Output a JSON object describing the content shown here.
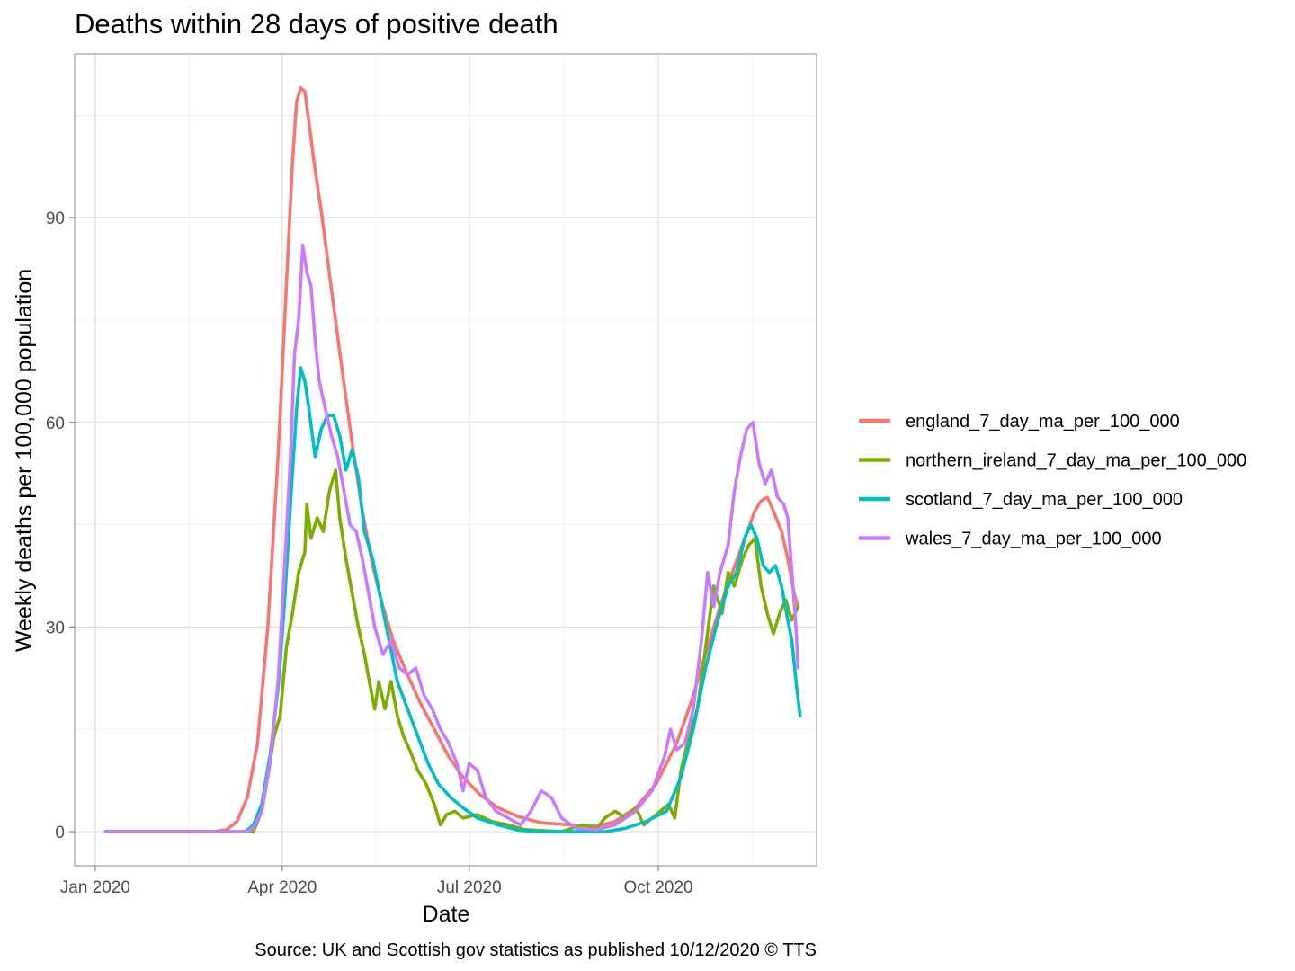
{
  "chart_data": {
    "type": "line",
    "title": "Deaths within 28 days of positive death",
    "xlabel": "Date",
    "ylabel": "Weekly deaths per 100,000 population",
    "caption": "Source: UK and Scottish gov statistics as published 10/12/2020  © TTS",
    "x_ticks": [
      "Jan 2020",
      "Apr 2020",
      "Jul 2020",
      "Oct 2020"
    ],
    "y_ticks": [
      0,
      30,
      60,
      90
    ],
    "xlim": [
      "2019-12-22",
      "2020-12-17"
    ],
    "ylim": [
      -5,
      114
    ],
    "grid": true,
    "legend_position": "right",
    "series": [
      {
        "name": "england_7_day_ma_per_100_000",
        "color": "#F8766D",
        "points": [
          [
            "2020-01-06",
            0
          ],
          [
            "2020-02-28",
            0
          ],
          [
            "2020-03-05",
            0.3
          ],
          [
            "2020-03-10",
            1.5
          ],
          [
            "2020-03-15",
            5
          ],
          [
            "2020-03-20",
            13
          ],
          [
            "2020-03-25",
            30
          ],
          [
            "2020-03-30",
            55
          ],
          [
            "2020-04-03",
            80
          ],
          [
            "2020-04-06",
            98
          ],
          [
            "2020-04-08",
            107
          ],
          [
            "2020-04-10",
            109
          ],
          [
            "2020-04-12",
            108.5
          ],
          [
            "2020-04-14",
            104
          ],
          [
            "2020-04-17",
            97
          ],
          [
            "2020-04-20",
            91
          ],
          [
            "2020-04-23",
            84
          ],
          [
            "2020-04-26",
            77
          ],
          [
            "2020-04-30",
            68
          ],
          [
            "2020-05-05",
            57
          ],
          [
            "2020-05-10",
            47
          ],
          [
            "2020-05-15",
            39
          ],
          [
            "2020-05-20",
            33
          ],
          [
            "2020-05-25",
            28
          ],
          [
            "2020-06-01",
            23
          ],
          [
            "2020-06-07",
            19
          ],
          [
            "2020-06-14",
            15
          ],
          [
            "2020-06-21",
            11
          ],
          [
            "2020-06-28",
            8
          ],
          [
            "2020-07-06",
            5.5
          ],
          [
            "2020-07-15",
            3.5
          ],
          [
            "2020-07-25",
            2.2
          ],
          [
            "2020-08-05",
            1.3
          ],
          [
            "2020-08-20",
            1
          ],
          [
            "2020-09-01",
            0.8
          ],
          [
            "2020-09-10",
            1.5
          ],
          [
            "2020-09-20",
            3.5
          ],
          [
            "2020-09-30",
            7
          ],
          [
            "2020-10-10",
            13
          ],
          [
            "2020-10-17",
            19
          ],
          [
            "2020-10-24",
            26
          ],
          [
            "2020-10-31",
            33
          ],
          [
            "2020-11-06",
            38
          ],
          [
            "2020-11-12",
            43
          ],
          [
            "2020-11-17",
            47
          ],
          [
            "2020-11-20",
            48.5
          ],
          [
            "2020-11-23",
            49
          ],
          [
            "2020-11-26",
            47
          ],
          [
            "2020-11-30",
            44
          ],
          [
            "2020-12-03",
            40
          ],
          [
            "2020-12-06",
            35
          ],
          [
            "2020-12-08",
            33
          ]
        ]
      },
      {
        "name": "northern_ireland_7_day_ma_per_100_000",
        "color": "#7CAE00",
        "points": [
          [
            "2020-01-06",
            0
          ],
          [
            "2020-03-18",
            0
          ],
          [
            "2020-03-22",
            3
          ],
          [
            "2020-03-25",
            8
          ],
          [
            "2020-03-28",
            14
          ],
          [
            "2020-03-31",
            17
          ],
          [
            "2020-04-03",
            27
          ],
          [
            "2020-04-06",
            32
          ],
          [
            "2020-04-09",
            38
          ],
          [
            "2020-04-12",
            41
          ],
          [
            "2020-04-13",
            48
          ],
          [
            "2020-04-15",
            43
          ],
          [
            "2020-04-18",
            46
          ],
          [
            "2020-04-21",
            44
          ],
          [
            "2020-04-24",
            50
          ],
          [
            "2020-04-27",
            53
          ],
          [
            "2020-04-29",
            46
          ],
          [
            "2020-05-02",
            40
          ],
          [
            "2020-05-05",
            35
          ],
          [
            "2020-05-08",
            30
          ],
          [
            "2020-05-11",
            26
          ],
          [
            "2020-05-14",
            21
          ],
          [
            "2020-05-16",
            18
          ],
          [
            "2020-05-18",
            22
          ],
          [
            "2020-05-21",
            18
          ],
          [
            "2020-05-24",
            22
          ],
          [
            "2020-05-27",
            17
          ],
          [
            "2020-05-30",
            14
          ],
          [
            "2020-06-02",
            12
          ],
          [
            "2020-06-06",
            9
          ],
          [
            "2020-06-10",
            7
          ],
          [
            "2020-06-14",
            4
          ],
          [
            "2020-06-17",
            1
          ],
          [
            "2020-06-20",
            2.5
          ],
          [
            "2020-06-24",
            3
          ],
          [
            "2020-06-28",
            2
          ],
          [
            "2020-07-05",
            2.5
          ],
          [
            "2020-07-12",
            1.5
          ],
          [
            "2020-07-20",
            1
          ],
          [
            "2020-07-28",
            0.3
          ],
          [
            "2020-08-15",
            0
          ],
          [
            "2020-08-25",
            1
          ],
          [
            "2020-09-01",
            0.5
          ],
          [
            "2020-09-05",
            2
          ],
          [
            "2020-09-10",
            3
          ],
          [
            "2020-09-15",
            2
          ],
          [
            "2020-09-20",
            3.5
          ],
          [
            "2020-09-24",
            1
          ],
          [
            "2020-09-28",
            2
          ],
          [
            "2020-10-02",
            3
          ],
          [
            "2020-10-06",
            4
          ],
          [
            "2020-10-09",
            2
          ],
          [
            "2020-10-12",
            9
          ],
          [
            "2020-10-16",
            14
          ],
          [
            "2020-10-20",
            18
          ],
          [
            "2020-10-24",
            27
          ],
          [
            "2020-10-28",
            36
          ],
          [
            "2020-11-01",
            32
          ],
          [
            "2020-11-04",
            38
          ],
          [
            "2020-11-07",
            36
          ],
          [
            "2020-11-11",
            40
          ],
          [
            "2020-11-14",
            42
          ],
          [
            "2020-11-17",
            43
          ],
          [
            "2020-11-20",
            36
          ],
          [
            "2020-11-23",
            32
          ],
          [
            "2020-11-26",
            29
          ],
          [
            "2020-11-29",
            32
          ],
          [
            "2020-12-02",
            34
          ],
          [
            "2020-12-05",
            31
          ],
          [
            "2020-12-08",
            33
          ]
        ]
      },
      {
        "name": "scotland_7_day_ma_per_100_000",
        "color": "#00BFC4",
        "points": [
          [
            "2020-01-06",
            0
          ],
          [
            "2020-03-14",
            0
          ],
          [
            "2020-03-18",
            1
          ],
          [
            "2020-03-22",
            4
          ],
          [
            "2020-03-26",
            11
          ],
          [
            "2020-03-30",
            21
          ],
          [
            "2020-04-02",
            33
          ],
          [
            "2020-04-05",
            48
          ],
          [
            "2020-04-08",
            62
          ],
          [
            "2020-04-10",
            68
          ],
          [
            "2020-04-12",
            66
          ],
          [
            "2020-04-14",
            62
          ],
          [
            "2020-04-17",
            55
          ],
          [
            "2020-04-20",
            59
          ],
          [
            "2020-04-23",
            61
          ],
          [
            "2020-04-26",
            61
          ],
          [
            "2020-04-29",
            58
          ],
          [
            "2020-05-02",
            53
          ],
          [
            "2020-05-05",
            56
          ],
          [
            "2020-05-08",
            52
          ],
          [
            "2020-05-11",
            44
          ],
          [
            "2020-05-15",
            40
          ],
          [
            "2020-05-19",
            34
          ],
          [
            "2020-05-23",
            28
          ],
          [
            "2020-05-27",
            22
          ],
          [
            "2020-06-01",
            18
          ],
          [
            "2020-06-06",
            14
          ],
          [
            "2020-06-11",
            10
          ],
          [
            "2020-06-16",
            7
          ],
          [
            "2020-06-22",
            5
          ],
          [
            "2020-06-28",
            3.5
          ],
          [
            "2020-07-05",
            2
          ],
          [
            "2020-07-15",
            1
          ],
          [
            "2020-07-25",
            0.2
          ],
          [
            "2020-08-05",
            0
          ],
          [
            "2020-09-05",
            0
          ],
          [
            "2020-09-15",
            0.5
          ],
          [
            "2020-09-25",
            1.5
          ],
          [
            "2020-10-05",
            3
          ],
          [
            "2020-10-12",
            8
          ],
          [
            "2020-10-18",
            15
          ],
          [
            "2020-10-24",
            24
          ],
          [
            "2020-10-30",
            31
          ],
          [
            "2020-11-04",
            36
          ],
          [
            "2020-11-08",
            38
          ],
          [
            "2020-11-12",
            43
          ],
          [
            "2020-11-15",
            45
          ],
          [
            "2020-11-18",
            43
          ],
          [
            "2020-11-21",
            39
          ],
          [
            "2020-11-24",
            38
          ],
          [
            "2020-11-27",
            39
          ],
          [
            "2020-11-30",
            36
          ],
          [
            "2020-12-03",
            31
          ],
          [
            "2020-12-05",
            28
          ],
          [
            "2020-12-07",
            22
          ],
          [
            "2020-12-09",
            17
          ]
        ]
      },
      {
        "name": "wales_7_day_ma_per_100_000",
        "color": "#C77CFF",
        "points": [
          [
            "2020-01-06",
            0
          ],
          [
            "2020-03-14",
            0
          ],
          [
            "2020-03-18",
            0.5
          ],
          [
            "2020-03-22",
            3
          ],
          [
            "2020-03-26",
            10
          ],
          [
            "2020-03-30",
            22
          ],
          [
            "2020-04-02",
            38
          ],
          [
            "2020-04-05",
            55
          ],
          [
            "2020-04-07",
            70
          ],
          [
            "2020-04-09",
            75
          ],
          [
            "2020-04-11",
            86
          ],
          [
            "2020-04-13",
            82
          ],
          [
            "2020-04-15",
            80
          ],
          [
            "2020-04-17",
            72
          ],
          [
            "2020-04-19",
            66
          ],
          [
            "2020-04-22",
            62
          ],
          [
            "2020-04-25",
            58
          ],
          [
            "2020-04-28",
            55
          ],
          [
            "2020-05-01",
            50
          ],
          [
            "2020-05-04",
            45
          ],
          [
            "2020-05-07",
            44
          ],
          [
            "2020-05-10",
            40
          ],
          [
            "2020-05-13",
            35
          ],
          [
            "2020-05-16",
            30
          ],
          [
            "2020-05-20",
            26
          ],
          [
            "2020-05-24",
            28
          ],
          [
            "2020-05-28",
            24
          ],
          [
            "2020-06-01",
            23
          ],
          [
            "2020-06-05",
            24
          ],
          [
            "2020-06-09",
            20
          ],
          [
            "2020-06-13",
            18
          ],
          [
            "2020-06-17",
            15
          ],
          [
            "2020-06-21",
            13
          ],
          [
            "2020-06-25",
            10
          ],
          [
            "2020-06-28",
            6
          ],
          [
            "2020-07-01",
            10
          ],
          [
            "2020-07-05",
            9
          ],
          [
            "2020-07-09",
            5
          ],
          [
            "2020-07-14",
            3
          ],
          [
            "2020-07-20",
            2
          ],
          [
            "2020-07-26",
            1
          ],
          [
            "2020-07-31",
            3
          ],
          [
            "2020-08-05",
            6
          ],
          [
            "2020-08-10",
            5
          ],
          [
            "2020-08-15",
            2
          ],
          [
            "2020-08-22",
            0.5
          ],
          [
            "2020-09-01",
            0.3
          ],
          [
            "2020-09-10",
            1
          ],
          [
            "2020-09-20",
            3
          ],
          [
            "2020-09-28",
            6
          ],
          [
            "2020-10-04",
            11
          ],
          [
            "2020-10-07",
            15
          ],
          [
            "2020-10-10",
            12
          ],
          [
            "2020-10-14",
            13
          ],
          [
            "2020-10-18",
            18
          ],
          [
            "2020-10-22",
            28
          ],
          [
            "2020-10-25",
            38
          ],
          [
            "2020-10-28",
            33
          ],
          [
            "2020-10-31",
            38
          ],
          [
            "2020-11-04",
            42
          ],
          [
            "2020-11-07",
            50
          ],
          [
            "2020-11-10",
            55
          ],
          [
            "2020-11-13",
            59
          ],
          [
            "2020-11-16",
            60
          ],
          [
            "2020-11-19",
            54
          ],
          [
            "2020-11-22",
            51
          ],
          [
            "2020-11-25",
            53
          ],
          [
            "2020-11-28",
            49
          ],
          [
            "2020-12-01",
            48
          ],
          [
            "2020-12-03",
            46
          ],
          [
            "2020-12-05",
            38
          ],
          [
            "2020-12-07",
            30
          ],
          [
            "2020-12-08",
            24
          ]
        ]
      }
    ]
  }
}
